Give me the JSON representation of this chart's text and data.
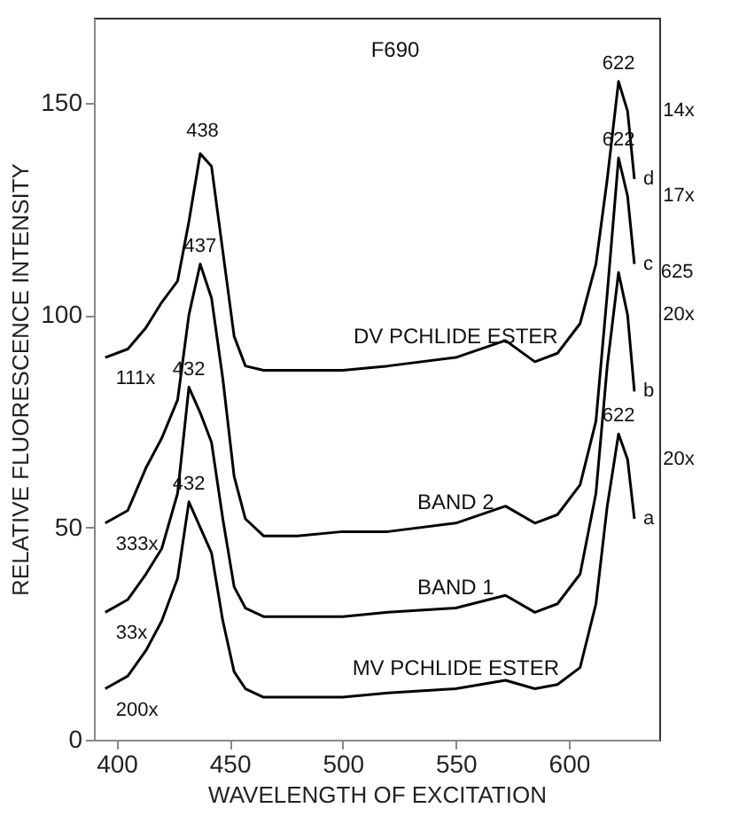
{
  "chart_data": {
    "type": "line",
    "xlabel": "WAVELENGTH OF EXCITATION",
    "ylabel": "RELATIVE FLUORESCENCE INTENSITY",
    "x": [
      395,
      405,
      413,
      420,
      427,
      432,
      437,
      442,
      447,
      452,
      457,
      465,
      480,
      500,
      520,
      550,
      572,
      585,
      595,
      605,
      612,
      617,
      622,
      626,
      629
    ],
    "series": [
      {
        "name": "DV PCHLIDE ESTER",
        "color": "#000000",
        "values": [
          90,
          92,
          97,
          103,
          108,
          122,
          138,
          135,
          115,
          95,
          88,
          87,
          87,
          87,
          88,
          90,
          94,
          89,
          91,
          98,
          112,
          132,
          155,
          148,
          132
        ]
      },
      {
        "name": "BAND 2",
        "color": "#000000",
        "values": [
          51,
          54,
          64,
          71,
          80,
          100,
          112,
          104,
          85,
          62,
          52,
          48,
          48,
          49,
          49,
          51,
          55,
          51,
          53,
          60,
          75,
          105,
          137,
          128,
          112
        ]
      },
      {
        "name": "BAND 1",
        "color": "#000000",
        "values": [
          30,
          33,
          39,
          45,
          58,
          83,
          77,
          70,
          52,
          36,
          31,
          29,
          29,
          29,
          30,
          31,
          34,
          30,
          32,
          39,
          58,
          88,
          110,
          100,
          82
        ]
      },
      {
        "name": "MV PCHLIDE ESTER",
        "color": "#000000",
        "values": [
          12,
          15,
          21,
          28,
          38,
          56,
          50,
          44,
          28,
          16,
          12,
          10,
          10,
          10,
          11,
          12,
          14,
          12,
          13,
          17,
          32,
          55,
          72,
          66,
          52
        ]
      }
    ],
    "xlim": [
      390,
      640
    ],
    "ylim": [
      0,
      170
    ],
    "xticks": [
      400,
      450,
      500,
      550,
      600
    ],
    "yticks": [
      0,
      50,
      100,
      150
    ],
    "grid": false,
    "legend": false,
    "marker": "none",
    "line_style": "solid",
    "annotations": [
      "F690",
      {
        "text": "438",
        "x": 438,
        "y": 139
      },
      {
        "text": "437",
        "x": 437,
        "y": 112
      },
      {
        "text": "432",
        "x": 432,
        "y": 83
      },
      {
        "text": "432",
        "x": 432,
        "y": 56
      },
      {
        "text": "622",
        "x": 622,
        "y": 155
      },
      {
        "text": "622",
        "x": 622,
        "y": 137
      },
      {
        "text": "625",
        "x": 625,
        "y": 110
      },
      {
        "text": "622",
        "x": 622,
        "y": 72
      },
      {
        "text": "111x",
        "x": 395,
        "y": 90
      },
      {
        "text": "333x",
        "x": 395,
        "y": 51
      },
      {
        "text": "33x",
        "x": 395,
        "y": 30
      },
      {
        "text": "200x",
        "x": 395,
        "y": 12
      },
      {
        "text": "14x",
        "x": 626,
        "y": 148
      },
      {
        "text": "17x",
        "x": 626,
        "y": 128
      },
      {
        "text": "20x",
        "x": 626,
        "y": 100
      },
      {
        "text": "20x",
        "x": 626,
        "y": 66
      },
      {
        "text": "d",
        "x": 629,
        "y": 132
      },
      {
        "text": "c",
        "x": 629,
        "y": 112
      },
      {
        "text": "b",
        "x": 629,
        "y": 82
      },
      {
        "text": "a",
        "x": 629,
        "y": 52
      }
    ]
  }
}
